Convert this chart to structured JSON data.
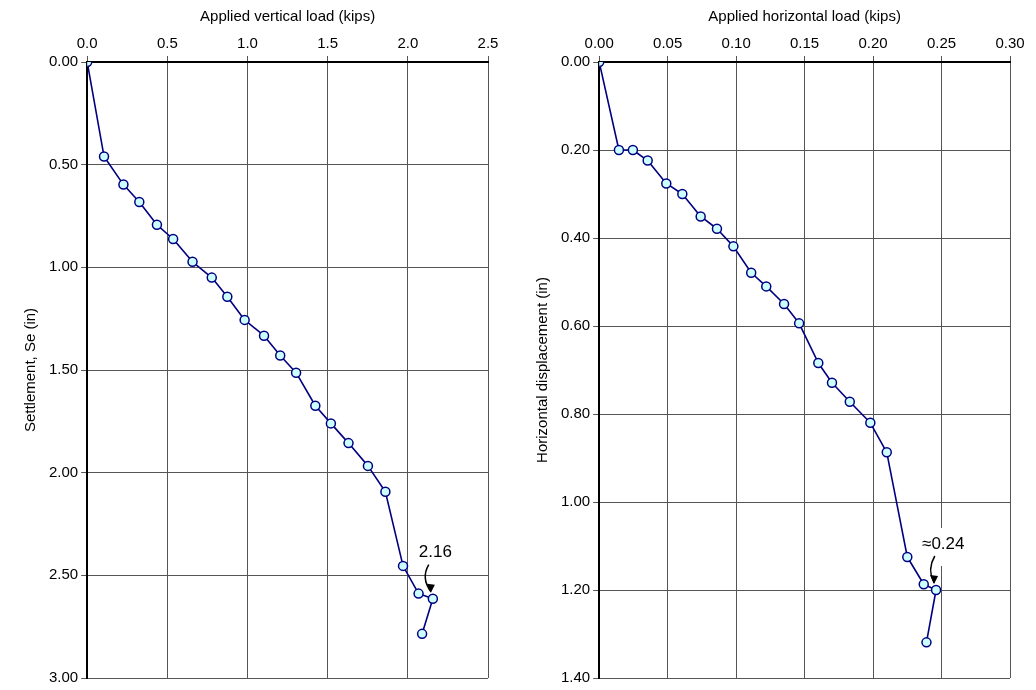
{
  "chart_data": [
    {
      "type": "line",
      "xlabel": "Applied vertical load (kips)",
      "ylabel": "Settlement, Se (in)",
      "xlim": [
        0,
        2.5
      ],
      "xticks": [
        {
          "value": 0,
          "label": "0.0"
        },
        0.5,
        {
          "value": 1,
          "label": "1.0"
        },
        1.5,
        {
          "value": 2,
          "label": "2.0"
        },
        2.5
      ],
      "ylim": [
        3,
        0
      ],
      "yticks": [
        {
          "value": 0,
          "label": "0.00"
        },
        {
          "value": 0.5,
          "label": "0.50"
        },
        {
          "value": 1,
          "label": "1.00"
        },
        {
          "value": 1.5,
          "label": "1.50"
        },
        {
          "value": 2,
          "label": "2.00"
        },
        {
          "value": 2.5,
          "label": "2.50"
        },
        {
          "value": 3,
          "label": "3.00"
        }
      ],
      "grid": true,
      "marker": "circle",
      "line_style": "solid",
      "x": [
        0,
        0.105,
        0.226,
        0.325,
        0.435,
        0.536,
        0.657,
        0.777,
        0.874,
        0.982,
        1.103,
        1.204,
        1.303,
        1.423,
        1.52,
        1.63,
        1.751,
        1.86,
        1.97,
        2.067,
        2.156,
        2.089
      ],
      "series": [
        {
          "color": "#000080",
          "values": [
            0,
            0.46,
            0.597,
            0.682,
            0.793,
            0.862,
            0.973,
            1.05,
            1.143,
            1.256,
            1.333,
            1.429,
            1.513,
            1.674,
            1.76,
            1.856,
            1.967,
            2.093,
            2.454,
            2.589,
            2.614,
            2.785
          ]
        }
      ],
      "annotations": [
        {
          "text": "2.16",
          "x": 2.156,
          "y": 2.614
        }
      ]
    },
    {
      "type": "line",
      "xlabel": "Applied horizontal load (kips)",
      "ylabel": "Horizontal displacement (in)",
      "xlim": [
        0,
        0.3
      ],
      "xticks": [
        {
          "value": 0,
          "label": "0.00"
        },
        0.05,
        {
          "value": 0.1,
          "label": "0.10"
        },
        0.15,
        {
          "value": 0.2,
          "label": "0.20"
        },
        0.25,
        {
          "value": 0.3,
          "label": "0.30"
        }
      ],
      "ylim": [
        1.4,
        0
      ],
      "yticks": [
        {
          "value": 0,
          "label": "0.00"
        },
        {
          "value": 0.2,
          "label": "0.20"
        },
        {
          "value": 0.4,
          "label": "0.40"
        },
        {
          "value": 0.6,
          "label": "0.60"
        },
        {
          "value": 0.8,
          "label": "0.80"
        },
        {
          "value": 1,
          "label": "1.00"
        },
        {
          "value": 1.2,
          "label": "1.20"
        },
        {
          "value": 1.4,
          "label": "1.40"
        }
      ],
      "grid": true,
      "marker": "circle",
      "line_style": "solid",
      "x": [
        0,
        0.0144,
        0.0246,
        0.0354,
        0.049,
        0.0607,
        0.0741,
        0.086,
        0.098,
        0.111,
        0.122,
        0.135,
        0.146,
        0.16,
        0.17,
        0.183,
        0.198,
        0.21,
        0.225,
        0.237,
        0.246,
        0.239
      ],
      "series": [
        {
          "color": "#000080",
          "values": [
            0,
            0.2,
            0.2,
            0.224,
            0.276,
            0.3,
            0.351,
            0.379,
            0.419,
            0.479,
            0.51,
            0.55,
            0.594,
            0.684,
            0.729,
            0.772,
            0.82,
            0.887,
            1.125,
            1.187,
            1.2,
            1.319
          ]
        }
      ],
      "annotations": [
        {
          "text": "≈0.24",
          "x": 0.246,
          "y": 1.2
        }
      ]
    }
  ]
}
